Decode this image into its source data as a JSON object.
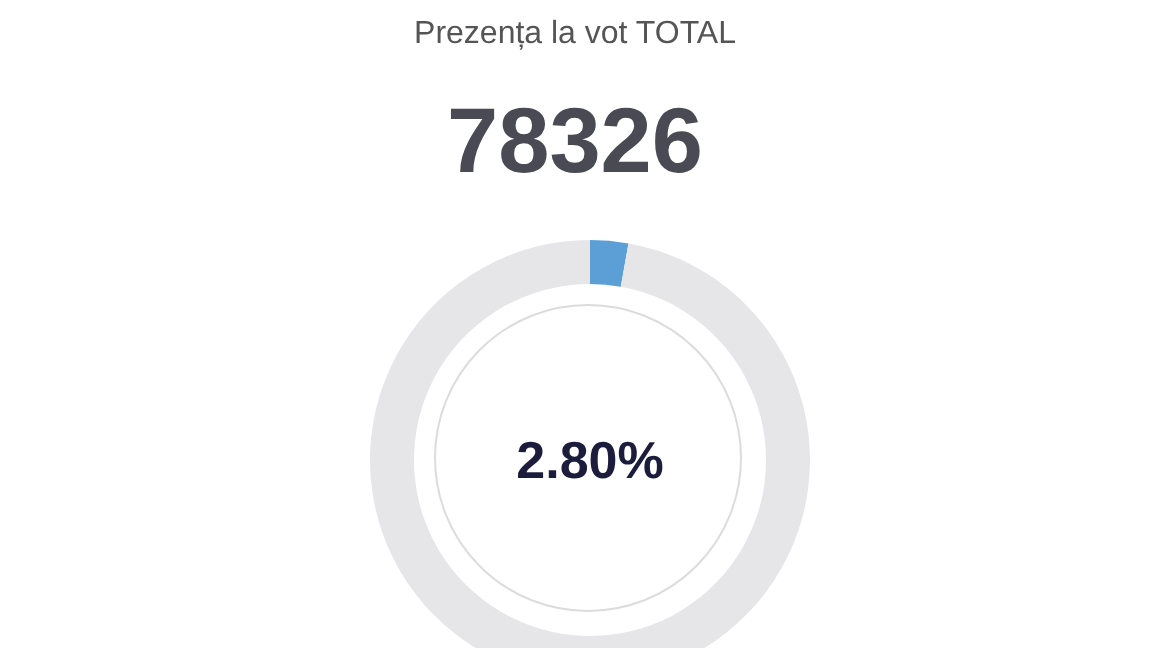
{
  "chart_data": {
    "type": "donut",
    "title": "Prezența la vot TOTAL",
    "subtitle": "78326",
    "categories": [
      null,
      null
    ],
    "values": [
      2.8,
      97.2
    ],
    "colors": [
      "#5b9fd6",
      "#e6e6e8"
    ],
    "value_labels": [
      "2.80%",
      null
    ]
  }
}
